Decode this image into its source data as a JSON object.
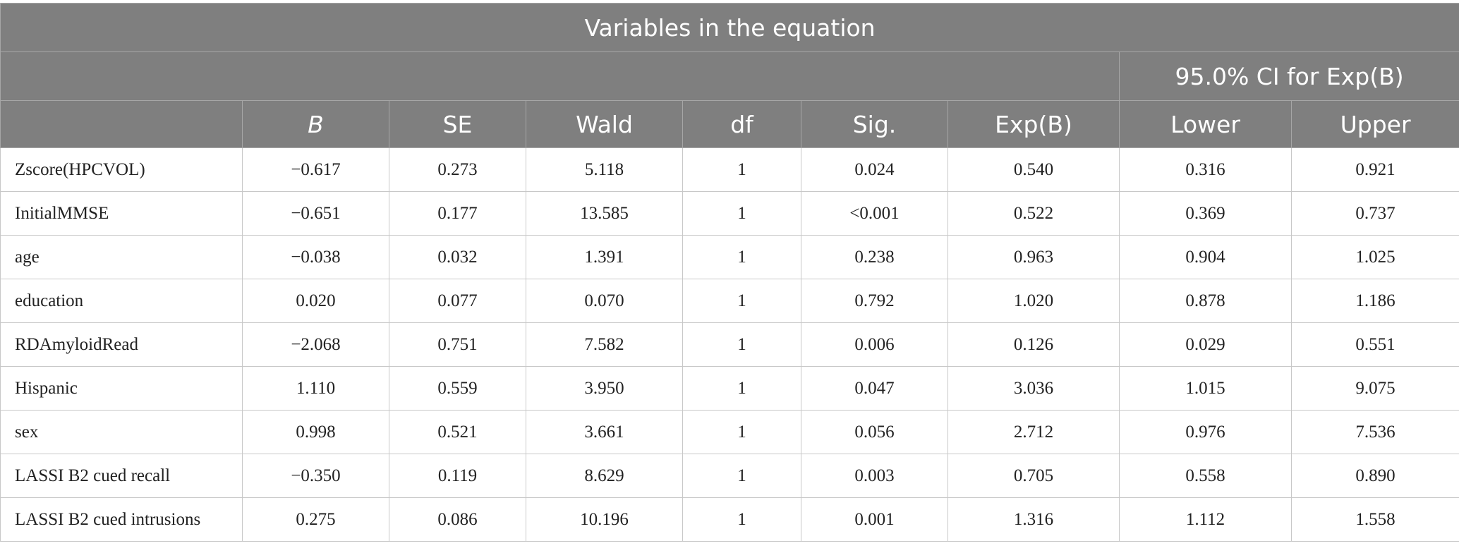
{
  "table": {
    "title": "Variables in the equation",
    "ci_header": "95.0% CI for Exp(B)",
    "columns": [
      "B",
      "SE",
      "Wald",
      "df",
      "Sig.",
      "Exp(B)",
      "Lower",
      "Upper"
    ],
    "rows": [
      [
        "Zscore(HPCVOL)",
        "−0.617",
        "0.273",
        "5.118",
        "1",
        "0.024",
        "0.540",
        "0.316",
        "0.921"
      ],
      [
        "InitialMMSE",
        "−0.651",
        "0.177",
        "13.585",
        "1",
        "<0.001",
        "0.522",
        "0.369",
        "0.737"
      ],
      [
        "age",
        "−0.038",
        "0.032",
        "1.391",
        "1",
        "0.238",
        "0.963",
        "0.904",
        "1.025"
      ],
      [
        "education",
        "0.020",
        "0.077",
        "0.070",
        "1",
        "0.792",
        "1.020",
        "0.878",
        "1.186"
      ],
      [
        "RDAmyloidRead",
        "−2.068",
        "0.751",
        "7.582",
        "1",
        "0.006",
        "0.126",
        "0.029",
        "0.551"
      ],
      [
        "Hispanic",
        "1.110",
        "0.559",
        "3.950",
        "1",
        "0.047",
        "3.036",
        "1.015",
        "9.075"
      ],
      [
        "sex",
        "0.998",
        "0.521",
        "3.661",
        "1",
        "0.056",
        "2.712",
        "0.976",
        "7.536"
      ],
      [
        "LASSI B2 cued recall",
        "−0.350",
        "0.119",
        "8.629",
        "1",
        "0.003",
        "0.705",
        "0.558",
        "0.890"
      ],
      [
        "LASSI B2 cued intrusions",
        "0.275",
        "0.086",
        "10.196",
        "1",
        "0.001",
        "1.316",
        "1.112",
        "1.558"
      ]
    ]
  }
}
